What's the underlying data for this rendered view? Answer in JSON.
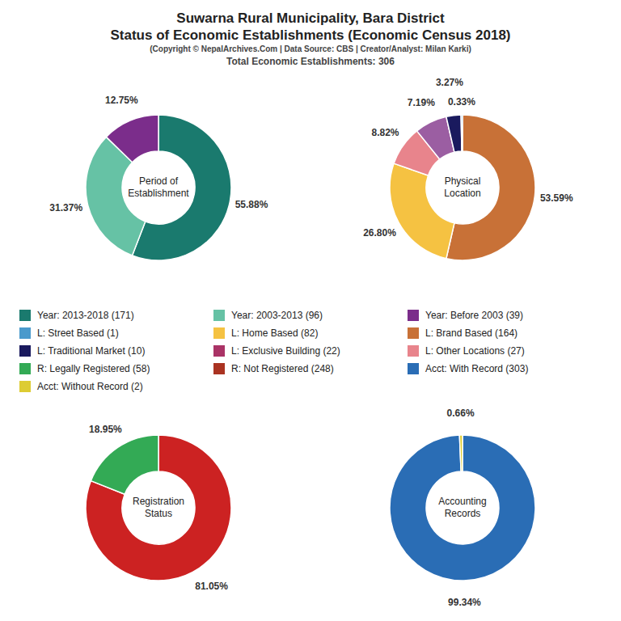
{
  "title": "Suwarna Rural Municipality, Bara District\nStatus of Economic Establishments (Economic Census 2018)",
  "subtitle": "(Copyright © NepalArchives.Com | Data Source: CBS | Creator/Analyst: Milan Karki)",
  "annotations": [
    "Total Economic Establishments: 306"
  ],
  "chart_data": [
    {
      "type": "pie",
      "title": "Period of\nEstablishment",
      "values": [
        55.88,
        31.37,
        12.75
      ],
      "value_labels": [
        "55.88%",
        "31.37%",
        "12.75%"
      ],
      "colors": [
        "#1a7a6e",
        "#66c2a5",
        "#7b2d8b"
      ],
      "data_labels": true
    },
    {
      "type": "pie",
      "title": "Physical\nLocation",
      "values": [
        53.59,
        26.8,
        8.82,
        7.19,
        3.27,
        0.33
      ],
      "value_labels": [
        "53.59%",
        "26.80%",
        "8.82%",
        "7.19%",
        "3.27%",
        "0.33%"
      ],
      "colors": [
        "#c87137",
        "#f5c242",
        "#e8848c",
        "#9b5ea2",
        "#1a1a5e",
        "#4a9acc"
      ],
      "data_labels": true
    },
    {
      "type": "pie",
      "title": "Registration\nStatus",
      "values": [
        81.05,
        18.95
      ],
      "value_labels": [
        "81.05%",
        "18.95%"
      ],
      "colors": [
        "#cc2222",
        "#33aa55"
      ],
      "data_labels": true
    },
    {
      "type": "pie",
      "title": "Accounting\nRecords",
      "values": [
        99.34,
        0.66
      ],
      "value_labels": [
        "99.34%",
        "0.66%"
      ],
      "colors": [
        "#2a6db5",
        "#ddcc33"
      ],
      "data_labels": true
    }
  ],
  "legend_items": [
    {
      "name": "Year: 2013-2018 (171)",
      "color": "#1a7a6e"
    },
    {
      "name": "Year: 2003-2013 (96)",
      "color": "#66c2a5"
    },
    {
      "name": "Year: Before 2003 (39)",
      "color": "#7b2d8b"
    },
    {
      "name": "L: Street Based (1)",
      "color": "#4a9acc"
    },
    {
      "name": "L: Home Based (82)",
      "color": "#f5c242"
    },
    {
      "name": "L: Brand Based (164)",
      "color": "#c87137"
    },
    {
      "name": "L: Traditional Market (10)",
      "color": "#1a1a5e"
    },
    {
      "name": "L: Exclusive Building (22)",
      "color": "#aa3366"
    },
    {
      "name": "L: Other Locations (27)",
      "color": "#e8848c"
    },
    {
      "name": "R: Legally Registered (58)",
      "color": "#33aa55"
    },
    {
      "name": "R: Not Registered (248)",
      "color": "#aa3322"
    },
    {
      "name": "Acct: With Record (303)",
      "color": "#2a6db5"
    },
    {
      "name": "Acct: Without Record (2)",
      "color": "#ddcc33"
    }
  ]
}
